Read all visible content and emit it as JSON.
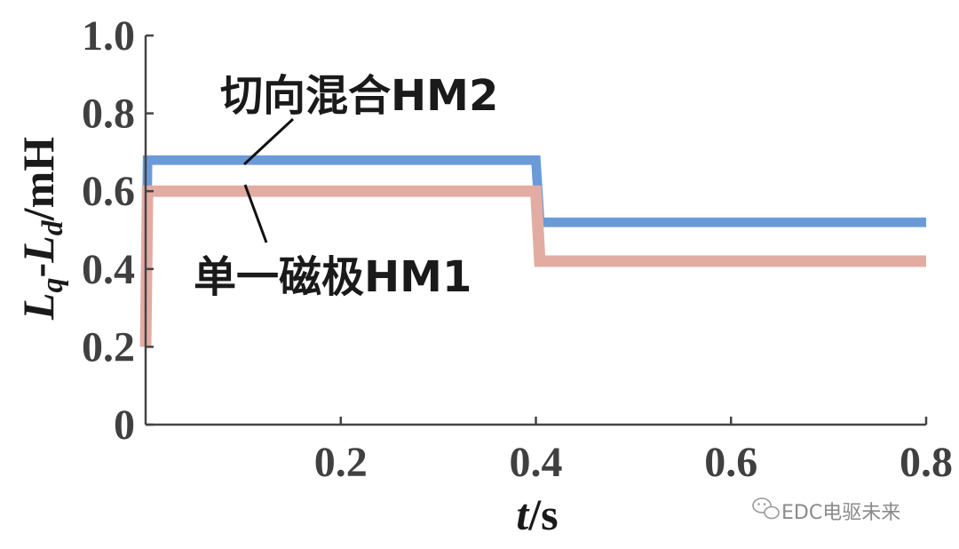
{
  "chart_data": {
    "type": "line",
    "xlabel_italic": "t",
    "xlabel_unit": "/s",
    "ylabel_parts": {
      "l1": "L",
      "s1": "q",
      "mid": "-",
      "l2": "L",
      "s2": "d",
      "unit": "/mH"
    },
    "xlim": [
      0,
      0.8
    ],
    "ylim": [
      0,
      1.0
    ],
    "x_ticks": [
      0.2,
      0.4,
      0.6,
      0.8
    ],
    "x_tick_labels": [
      "0.2",
      "0.4",
      "0.6",
      "0.8"
    ],
    "y_ticks": [
      0,
      0.2,
      0.4,
      0.6,
      0.8,
      1.0
    ],
    "y_tick_labels": [
      "0",
      "0.2",
      "0.4",
      "0.6",
      "0.8",
      "1.0"
    ],
    "grid": false,
    "series": [
      {
        "name": "切向混合HM2",
        "color": "#6a9bd8",
        "points": [
          [
            0,
            0.28
          ],
          [
            0.002,
            0.68
          ],
          [
            0.4,
            0.68
          ],
          [
            0.404,
            0.52
          ],
          [
            0.8,
            0.52
          ]
        ],
        "ripple": 0.02
      },
      {
        "name": "单一磁极HM1",
        "color": "#e3aca3",
        "points": [
          [
            0,
            0.2
          ],
          [
            0.002,
            0.6
          ],
          [
            0.4,
            0.6
          ],
          [
            0.404,
            0.42
          ],
          [
            0.8,
            0.42
          ]
        ],
        "ripple": 0.025
      }
    ],
    "annotations": [
      {
        "text": "切向混合HM2",
        "series": 0
      },
      {
        "text": "单一磁极HM1",
        "series": 1
      }
    ]
  },
  "watermark": {
    "text": "EDC电驱未来",
    "icon": "wechat-icon"
  }
}
